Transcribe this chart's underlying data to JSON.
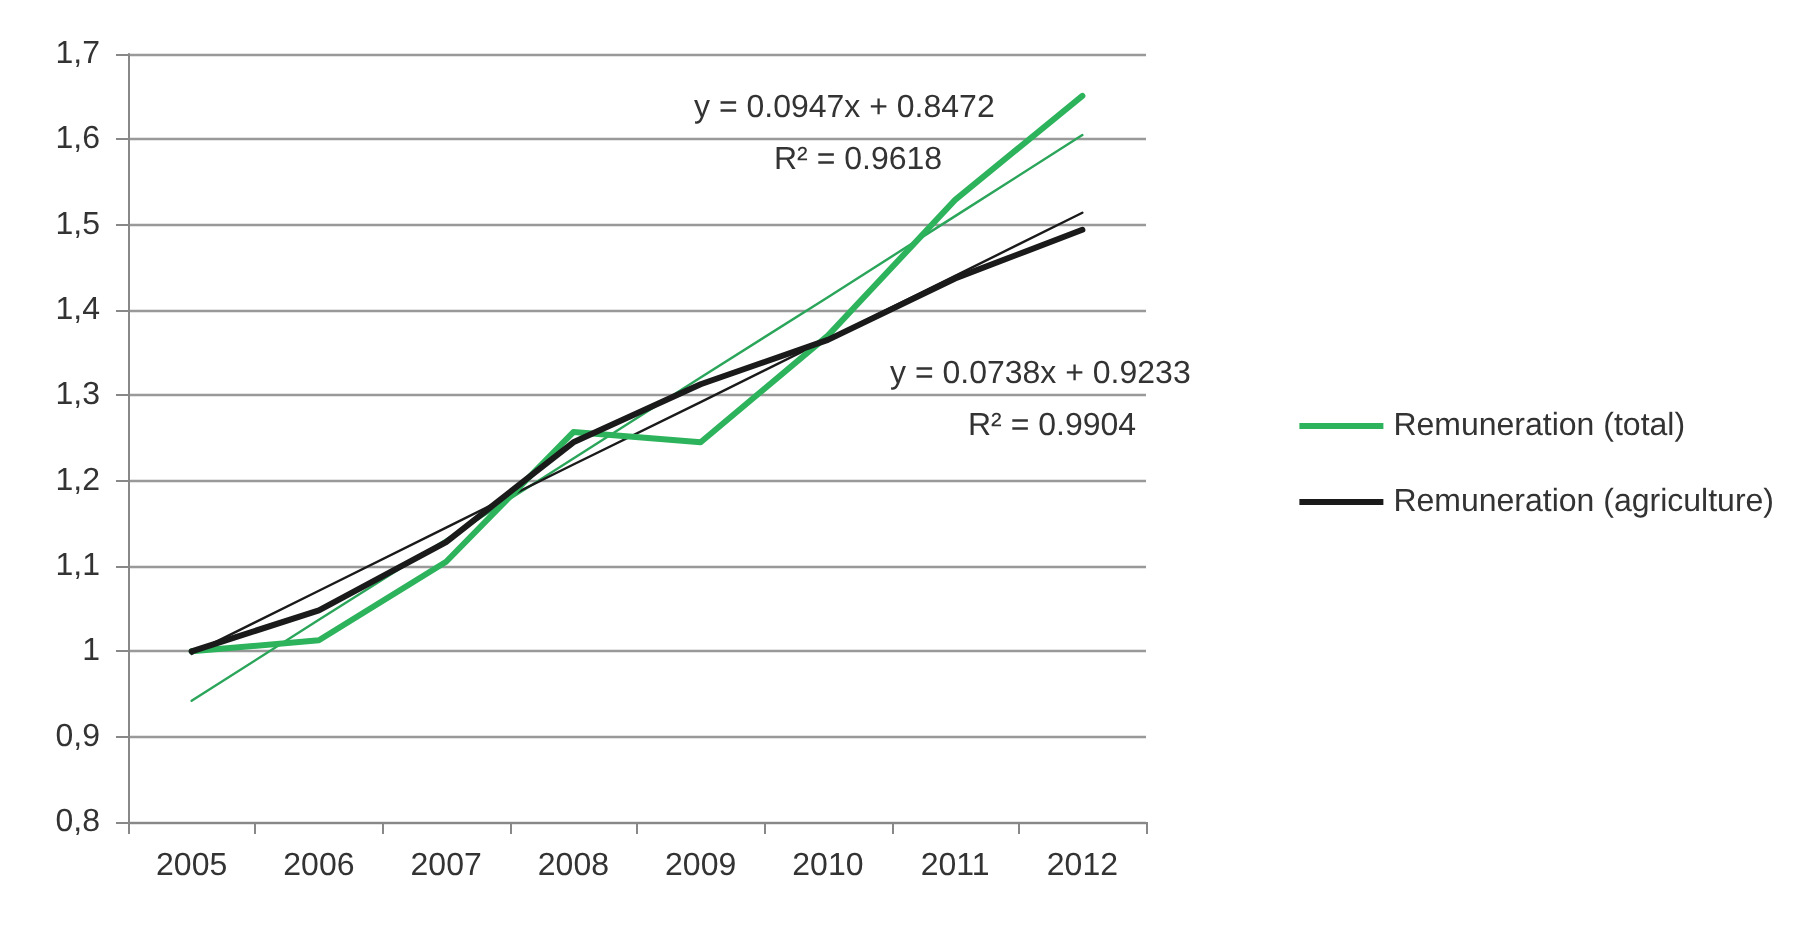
{
  "chart_data": {
    "type": "line",
    "categories": [
      "2005",
      "2006",
      "2007",
      "2008",
      "2009",
      "2010",
      "2011",
      "2012"
    ],
    "series": [
      {
        "name": "Remuneration (total)",
        "color": "#2db35c",
        "values": [
          1.0,
          1.013,
          1.105,
          1.257,
          1.245,
          1.37,
          1.529,
          1.651
        ]
      },
      {
        "name": "Remuneration (agriculture)",
        "color": "#1a1a1a",
        "values": [
          1.0,
          1.048,
          1.128,
          1.245,
          1.313,
          1.365,
          1.437,
          1.494
        ]
      },
      {
        "type": "line",
        "color": "#2aa55a",
        "values": [
          0.942,
          1.037,
          1.131,
          1.226,
          1.321,
          1.415,
          1.51,
          1.605
        ]
      },
      {
        "type": "line",
        "color": "#1a1a1a",
        "values": [
          0.997,
          1.071,
          1.145,
          1.219,
          1.292,
          1.366,
          1.44,
          1.514
        ]
      }
    ],
    "annotations": [
      "y = 0.0947x + 0.8472",
      "R² = 0.9618",
      "y = 0.0738x + 0.9233",
      "R² = 0.9904"
    ],
    "ylim": [
      0.8,
      1.7
    ],
    "yticks": [
      {
        "value": 0.8,
        "label": "0,8"
      },
      {
        "value": 0.9,
        "label": "0,9"
      },
      1,
      {
        "value": 1.1,
        "label": "1,1"
      },
      {
        "value": 1.2,
        "label": "1,2"
      },
      {
        "value": 1.3,
        "label": "1,3"
      },
      {
        "value": 1.4,
        "label": "1,4"
      },
      {
        "value": 1.5,
        "label": "1,5"
      },
      {
        "value": 1.6,
        "label": "1,6"
      },
      {
        "value": 1.7,
        "label": "1,7"
      }
    ],
    "grid": "y",
    "legend": "right",
    "marker": "none",
    "line_style": "solid"
  }
}
